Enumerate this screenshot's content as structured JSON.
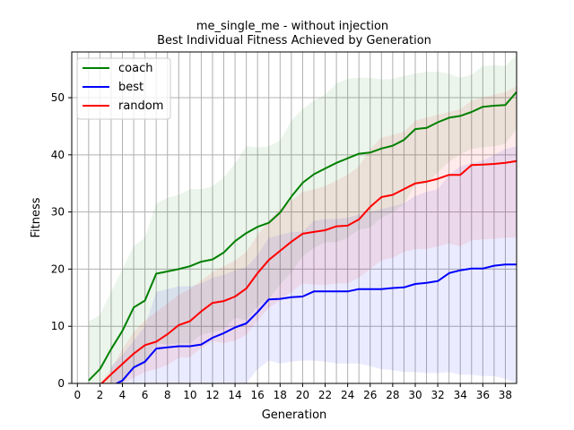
{
  "chart_data": {
    "type": "line",
    "title": "me_single_me - without injection",
    "subtitle": "Best Individual Fitness Achieved by Generation",
    "xlabel": "Generation",
    "ylabel": "Fitness",
    "xlim": [
      -0.5,
      39
    ],
    "ylim": [
      0,
      58
    ],
    "xticks": [
      0,
      2,
      4,
      6,
      8,
      10,
      12,
      14,
      16,
      18,
      20,
      22,
      24,
      26,
      28,
      30,
      32,
      34,
      36,
      38
    ],
    "yticks": [
      0,
      10,
      20,
      30,
      40,
      50
    ],
    "grid": true,
    "legend_position": "upper left",
    "series": [
      {
        "name": "coach",
        "color": "#008000",
        "band_color": "#008000",
        "x": [
          1,
          2,
          3,
          4,
          5,
          6,
          7,
          8,
          9,
          10,
          11,
          12,
          13,
          14,
          15,
          16,
          17,
          18,
          19,
          20,
          21,
          22,
          23,
          24,
          25,
          26,
          27,
          28,
          29,
          30,
          31,
          32,
          33,
          34,
          35,
          36,
          37,
          38,
          39
        ],
        "values": [
          0.5,
          2.5,
          6.0,
          9.2,
          13.3,
          14.5,
          19.2,
          19.6,
          20.0,
          20.5,
          21.3,
          21.7,
          22.9,
          24.9,
          26.3,
          27.4,
          28.1,
          29.9,
          32.7,
          35.1,
          36.6,
          37.6,
          38.6,
          39.4,
          40.2,
          40.4,
          41.1,
          41.6,
          42.6,
          44.5,
          44.7,
          45.7,
          46.5,
          46.8,
          47.5,
          48.4,
          48.6,
          48.7,
          51.0
        ],
        "upper": [
          10.8,
          12.0,
          16.0,
          20.0,
          24.0,
          25.5,
          31.5,
          32.5,
          33.0,
          34.0,
          34.0,
          34.5,
          36.0,
          38.5,
          41.5,
          41.3,
          41.5,
          42.5,
          46.0,
          48.0,
          49.5,
          50.5,
          52.5,
          53.3,
          53.5,
          53.5,
          53.2,
          53.3,
          53.8,
          54.2,
          54.5,
          54.5,
          54.2,
          53.5,
          54.0,
          55.5,
          55.7,
          55.5,
          57.5
        ],
        "lower": [
          0,
          0,
          0,
          0,
          2.5,
          3.5,
          7.0,
          6.8,
          7.0,
          7.0,
          8.5,
          9.0,
          9.5,
          11.5,
          11.0,
          13.5,
          14.8,
          17.3,
          19.4,
          22.2,
          23.7,
          24.7,
          24.7,
          25.5,
          26.9,
          27.3,
          29.0,
          29.9,
          31.4,
          34.8,
          34.9,
          36.9,
          38.8,
          40.1,
          41.0,
          41.3,
          41.5,
          41.9,
          44.5
        ]
      },
      {
        "name": "best",
        "color": "#0000ff",
        "band_color": "#0000ff",
        "x": [
          3,
          4,
          5,
          6,
          7,
          8,
          9,
          10,
          11,
          12,
          13,
          14,
          15,
          16,
          17,
          18,
          19,
          20,
          21,
          22,
          23,
          24,
          25,
          26,
          27,
          28,
          29,
          30,
          31,
          32,
          33,
          34,
          35,
          36,
          37,
          38,
          39
        ],
        "values": [
          -0.5,
          0.5,
          2.8,
          3.8,
          6.1,
          6.3,
          6.5,
          6.5,
          6.8,
          8.0,
          8.8,
          9.8,
          10.5,
          12.5,
          14.7,
          14.8,
          15.1,
          15.2,
          16.1,
          16.1,
          16.1,
          16.1,
          16.5,
          16.5,
          16.5,
          16.7,
          16.8,
          17.4,
          17.6,
          17.9,
          19.3,
          19.8,
          20.1,
          20.1,
          20.6,
          20.8,
          20.8
        ],
        "upper": [
          3.0,
          5.0,
          7.5,
          10.0,
          16.0,
          16.5,
          17.0,
          17.0,
          17.5,
          18.5,
          19.0,
          19.8,
          20.3,
          22.5,
          25.5,
          26.0,
          26.5,
          26.5,
          28.5,
          28.7,
          28.8,
          29.0,
          29.5,
          30.0,
          30.5,
          31.0,
          31.5,
          32.8,
          33.5,
          34.0,
          36.5,
          38.0,
          38.5,
          39.0,
          40.0,
          41.0,
          41.5
        ],
        "lower": [
          0,
          0,
          0,
          0,
          0,
          0,
          0,
          0,
          0,
          0,
          0,
          0,
          0,
          2.5,
          4.0,
          3.5,
          3.8,
          4.0,
          4.0,
          3.8,
          3.5,
          3.5,
          3.5,
          3.0,
          2.5,
          2.3,
          2.0,
          2.0,
          1.8,
          1.8,
          2.0,
          1.5,
          1.5,
          1.3,
          1.3,
          0.8,
          0.0
        ]
      },
      {
        "name": "random",
        "color": "#ff0000",
        "band_color": "#ff0000",
        "x": [
          2,
          3,
          4,
          5,
          6,
          7,
          8,
          9,
          10,
          11,
          12,
          13,
          14,
          15,
          16,
          17,
          18,
          19,
          20,
          21,
          22,
          23,
          24,
          25,
          26,
          27,
          28,
          29,
          30,
          31,
          32,
          33,
          34,
          35,
          36,
          37,
          38,
          39
        ],
        "values": [
          -0.3,
          1.6,
          3.4,
          5.2,
          6.7,
          7.3,
          8.6,
          10.2,
          10.9,
          12.6,
          14.1,
          14.4,
          15.2,
          16.6,
          19.3,
          21.6,
          23.2,
          24.8,
          26.2,
          26.5,
          26.8,
          27.5,
          27.6,
          28.7,
          30.9,
          32.6,
          33.0,
          34.0,
          35.0,
          35.3,
          35.8,
          36.5,
          36.5,
          38.2,
          38.3,
          38.4,
          38.6,
          38.9
        ],
        "upper": [
          0,
          2.5,
          6.0,
          9.0,
          11.0,
          12.5,
          14.0,
          15.5,
          16.5,
          18.0,
          19.5,
          20.5,
          21.5,
          23.0,
          26.0,
          28.5,
          30.5,
          32.0,
          33.5,
          34.0,
          34.5,
          35.5,
          36.5,
          38.0,
          41.0,
          43.0,
          43.5,
          44.0,
          46.0,
          46.5,
          47.0,
          47.5,
          48.0,
          49.5,
          50.0,
          50.5,
          51.0,
          52.0
        ],
        "lower": [
          0,
          0,
          0,
          1.0,
          2.0,
          2.5,
          3.2,
          4.5,
          4.6,
          6.2,
          7.4,
          7.0,
          7.5,
          8.5,
          11.0,
          13.2,
          14.5,
          16.0,
          17.5,
          17.3,
          17.2,
          17.5,
          17.5,
          18.5,
          20.0,
          21.5,
          22.0,
          23.0,
          23.5,
          23.5,
          24.0,
          24.5,
          24.0,
          25.0,
          25.2,
          25.3,
          25.5,
          25.5
        ]
      }
    ]
  }
}
